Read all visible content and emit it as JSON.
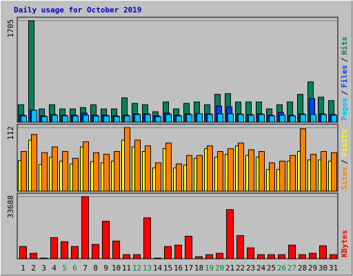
{
  "chart_data": [
    {
      "type": "bar",
      "title": "Daily usage for October 2019",
      "legend_separator": "/",
      "ylim": [
        0,
        1705
      ],
      "yticks": [
        1705
      ],
      "series": [
        {
          "name": "Hits",
          "color": "#00805c",
          "values": [
            292,
            1705,
            222,
            292,
            222,
            222,
            245,
            292,
            222,
            222,
            409,
            315,
            292,
            175,
            339,
            222,
            315,
            339,
            292,
            467,
            479,
            339,
            339,
            339,
            222,
            292,
            339,
            467,
            677,
            420,
            362
          ]
        },
        {
          "name": "Files",
          "color": "#0040ff",
          "values": [
            117,
            199,
            105,
            129,
            117,
            117,
            152,
            117,
            117,
            105,
            117,
            140,
            140,
            105,
            152,
            117,
            140,
            140,
            140,
            269,
            257,
            140,
            129,
            140,
            117,
            163,
            117,
            140,
            397,
            140,
            129
          ]
        },
        {
          "name": "Pages",
          "color": "#00c0ff",
          "values": [
            105,
            199,
            94,
            117,
            105,
            105,
            117,
            105,
            105,
            94,
            105,
            129,
            129,
            94,
            129,
            105,
            129,
            140,
            129,
            140,
            140,
            129,
            117,
            129,
            105,
            117,
            105,
            129,
            129,
            129,
            117
          ]
        }
      ]
    },
    {
      "type": "bar",
      "legend_separator": "/",
      "ylim": [
        0,
        112
      ],
      "yticks": [
        112
      ],
      "series": [
        {
          "name": "Visits",
          "color": "#ffff00",
          "values": [
            54,
            90,
            47,
            60,
            53,
            48,
            78,
            52,
            50,
            53,
            90,
            78,
            70,
            41,
            75,
            41,
            46,
            58,
            75,
            60,
            65,
            80,
            63,
            60,
            38,
            38,
            53,
            70,
            55,
            55,
            53
          ]
        },
        {
          "name": "Sites",
          "color": "#ff8000",
          "values": [
            70,
            100,
            68,
            78,
            70,
            58,
            87,
            68,
            65,
            70,
            112,
            90,
            80,
            50,
            85,
            48,
            63,
            63,
            80,
            70,
            75,
            85,
            73,
            70,
            50,
            53,
            63,
            110,
            65,
            70,
            68
          ]
        }
      ]
    },
    {
      "type": "bar",
      "ylim": [
        0,
        33688
      ],
      "yticks": [
        33688
      ],
      "categories": [
        "1",
        "2",
        "3",
        "4",
        "5",
        "6",
        "7",
        "8",
        "9",
        "10",
        "11",
        "12",
        "13",
        "14",
        "15",
        "16",
        "17",
        "18",
        "19",
        "20",
        "21",
        "22",
        "23",
        "24",
        "25",
        "26",
        "27",
        "28",
        "29",
        "30",
        "31"
      ],
      "highlight_indices": [
        4,
        5,
        11,
        12,
        18,
        19,
        25,
        26
      ],
      "highlight_color": "#008040",
      "series": [
        {
          "name": "KBytes",
          "color": "#ff0000",
          "values": [
            6660,
            2960,
            370,
            11480,
            9250,
            6660,
            33688,
            7770,
            20360,
            9620,
            2220,
            2220,
            22210,
            370,
            6660,
            7400,
            12220,
            1110,
            2220,
            2960,
            26650,
            12590,
            5920,
            2220,
            2220,
            2220,
            7400,
            2220,
            2960,
            7030,
            2220
          ]
        }
      ]
    }
  ]
}
